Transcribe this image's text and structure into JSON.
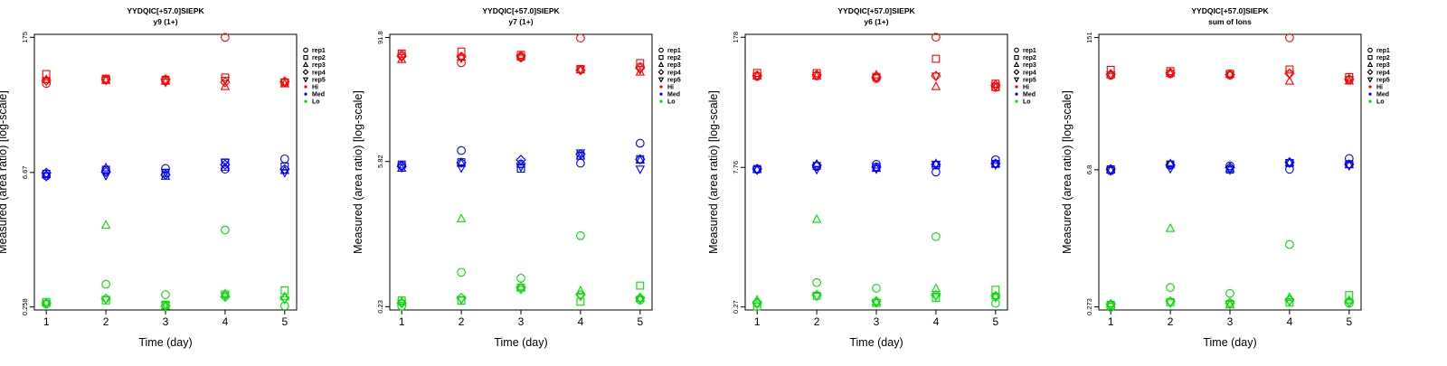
{
  "colors": {
    "Hi": "#ff0000",
    "Med": "#0000ff",
    "Lo": "#00dd00"
  },
  "legend": {
    "placement": "right",
    "entries": [
      {
        "label": "rep1",
        "marker": "circle"
      },
      {
        "label": "rep2",
        "marker": "square"
      },
      {
        "label": "rep3",
        "marker": "triangle-up"
      },
      {
        "label": "rep4",
        "marker": "diamond"
      },
      {
        "label": "rep5",
        "marker": "triangle-down"
      },
      {
        "label": "Hi",
        "marker": "dot",
        "color": "#ff0000"
      },
      {
        "label": "Med",
        "marker": "dot",
        "color": "#0000ff"
      },
      {
        "label": "Lo",
        "marker": "dot",
        "color": "#00dd00"
      }
    ]
  },
  "chart_data": [
    {
      "type": "scatter",
      "title": "YYDQIC[+57.0]SIEPK",
      "subtitle": "y9 (1+)",
      "xlabel": "Time (day)",
      "ylabel": "Measured (area ratio) [log-scale]",
      "yscale": "log",
      "xlim": [
        0.8,
        5.2
      ],
      "ylim": [
        0.24,
        188
      ],
      "xticks": [
        "1",
        "2",
        "3",
        "4",
        "5"
      ],
      "yticks": [
        {
          "value": 0.258,
          "label": "0.258"
        },
        {
          "value": 6.67,
          "label": "6.67"
        },
        {
          "value": 175,
          "label": "175"
        }
      ],
      "series": [
        {
          "group": "Hi",
          "rep": "rep1",
          "values": [
            57.3,
            63.9,
            61.1,
            174.5,
            59.0
          ]
        },
        {
          "group": "Hi",
          "rep": "rep2",
          "values": [
            72.0,
            64.4,
            62.6,
            66.2,
            57.9
          ]
        },
        {
          "group": "Hi",
          "rep": "rep3",
          "values": [
            62.9,
            61.6,
            60.4,
            53.1,
            56.7
          ]
        },
        {
          "group": "Hi",
          "rep": "rep4",
          "values": [
            61.5,
            63.0,
            63.3,
            59.1,
            60.0
          ]
        },
        {
          "group": "Hi",
          "rep": "rep5",
          "values": [
            60.6,
            62.2,
            59.2,
            61.8,
            59.5
          ]
        },
        {
          "group": "Med",
          "rep": "rep1",
          "values": [
            6.14,
            7.0,
            7.35,
            7.22,
            9.26
          ]
        },
        {
          "group": "Med",
          "rep": "rep2",
          "values": [
            6.45,
            7.12,
            6.53,
            8.48,
            7.69
          ]
        },
        {
          "group": "Med",
          "rep": "rep3",
          "values": [
            6.31,
            7.44,
            6.07,
            7.55,
            6.98
          ]
        },
        {
          "group": "Med",
          "rep": "rep4",
          "values": [
            6.61,
            6.74,
            6.31,
            8.05,
            7.22
          ]
        },
        {
          "group": "Med",
          "rep": "rep5",
          "values": [
            6.06,
            6.21,
            6.71,
            8.53,
            6.66
          ]
        },
        {
          "group": "Lo",
          "rep": "rep1",
          "values": [
            0.277,
            0.447,
            0.348,
            1.66,
            0.265
          ]
        },
        {
          "group": "Lo",
          "rep": "rep2",
          "values": [
            0.291,
            0.303,
            0.272,
            0.349,
            0.385
          ]
        },
        {
          "group": "Lo",
          "rep": "rep3",
          "values": [
            0.286,
            1.865,
            0.263,
            0.355,
            0.33
          ]
        },
        {
          "group": "Lo",
          "rep": "rep4",
          "values": [
            0.283,
            0.315,
            0.265,
            0.33,
            0.32
          ]
        },
        {
          "group": "Lo",
          "rep": "rep5",
          "values": [
            0.28,
            0.31,
            0.27,
            0.34,
            0.31
          ]
        }
      ]
    },
    {
      "type": "scatter",
      "title": "YYDQIC[+57.0]SIEPK",
      "subtitle": "y7 (1+)",
      "xlabel": "Time (day)",
      "ylabel": "Measured (area ratio) [log-scale]",
      "yscale": "log",
      "xlim": [
        0.8,
        5.2
      ],
      "ylim": [
        0.214,
        98.6
      ],
      "xticks": [
        "1",
        "2",
        "3",
        "4",
        "5"
      ],
      "yticks": [
        {
          "value": 0.23,
          "label": "0.23"
        },
        {
          "value": 5.82,
          "label": "5.82"
        },
        {
          "value": 91.8,
          "label": "91.8"
        }
      ],
      "series": [
        {
          "group": "Hi",
          "rep": "rep1",
          "values": [
            61.9,
            52.4,
            59.1,
            90.8,
            47.8
          ]
        },
        {
          "group": "Hi",
          "rep": "rep2",
          "values": [
            64.2,
            67.1,
            62.4,
            45.6,
            52.0
          ]
        },
        {
          "group": "Hi",
          "rep": "rep3",
          "values": [
            56.2,
            59.4,
            59.8,
            44.7,
            42.5
          ]
        },
        {
          "group": "Hi",
          "rep": "rep4",
          "values": [
            60.4,
            60.0,
            60.8,
            44.4,
            46.5
          ]
        },
        {
          "group": "Hi",
          "rep": "rep5",
          "values": [
            59.0,
            58.0,
            58.4,
            45.0,
            45.0
          ]
        },
        {
          "group": "Med",
          "rep": "rep1",
          "values": [
            5.32,
            7.43,
            5.51,
            5.61,
            8.74
          ]
        },
        {
          "group": "Med",
          "rep": "rep2",
          "values": [
            5.44,
            5.73,
            4.97,
            6.63,
            6.13
          ]
        },
        {
          "group": "Med",
          "rep": "rep3",
          "values": [
            5.01,
            5.58,
            5.47,
            6.56,
            5.99
          ]
        },
        {
          "group": "Med",
          "rep": "rep4",
          "values": [
            5.21,
            5.67,
            6.04,
            6.86,
            6.11
          ]
        },
        {
          "group": "Med",
          "rep": "rep5",
          "values": [
            5.09,
            5.06,
            5.18,
            7.06,
            4.92
          ]
        },
        {
          "group": "Lo",
          "rep": "rep1",
          "values": [
            0.233,
            0.495,
            0.434,
            1.118,
            0.267
          ]
        },
        {
          "group": "Lo",
          "rep": "rep2",
          "values": [
            0.264,
            0.263,
            0.352,
            0.257,
            0.368
          ]
        },
        {
          "group": "Lo",
          "rep": "rep3",
          "values": [
            0.258,
            1.628,
            0.357,
            0.327,
            0.276
          ]
        },
        {
          "group": "Lo",
          "rep": "rep4",
          "values": [
            0.25,
            0.28,
            0.35,
            0.3,
            0.28
          ]
        },
        {
          "group": "Lo",
          "rep": "rep5",
          "values": [
            0.25,
            0.27,
            0.34,
            0.29,
            0.27
          ]
        }
      ]
    },
    {
      "type": "scatter",
      "title": "YYDQIC[+57.0]SIEPK",
      "subtitle": "y6 (1+)",
      "xlabel": "Time (day)",
      "ylabel": "Measured (area ratio) [log-scale]",
      "yscale": "log",
      "xlim": [
        0.8,
        5.2
      ],
      "ylim": [
        0.251,
        191
      ],
      "xticks": [
        "1",
        "2",
        "3",
        "4",
        "5"
      ],
      "yticks": [
        {
          "value": 0.27,
          "label": "0.27"
        },
        {
          "value": 7.76,
          "label": "7.76"
        },
        {
          "value": 178,
          "label": "178"
        }
      ],
      "series": [
        {
          "group": "Hi",
          "rep": "rep1",
          "values": [
            69.3,
            70.4,
            66.0,
            178.3,
            53.3
          ]
        },
        {
          "group": "Hi",
          "rep": "rep2",
          "values": [
            75.4,
            75.1,
            68.5,
            106.0,
            58.2
          ]
        },
        {
          "group": "Hi",
          "rep": "rep3",
          "values": [
            70.0,
            70.0,
            71.8,
            54.3,
            53.3
          ]
        },
        {
          "group": "Hi",
          "rep": "rep4",
          "values": [
            71.0,
            72.0,
            68.0,
            70.0,
            56.0
          ]
        },
        {
          "group": "Hi",
          "rep": "rep5",
          "values": [
            70.0,
            71.0,
            67.0,
            70.0,
            55.0
          ]
        },
        {
          "group": "Med",
          "rep": "rep1",
          "values": [
            7.36,
            7.93,
            8.36,
            6.94,
            9.34
          ]
        },
        {
          "group": "Med",
          "rep": "rep2",
          "values": [
            7.47,
            8.04,
            7.84,
            8.18,
            8.45
          ]
        },
        {
          "group": "Med",
          "rep": "rep3",
          "values": [
            7.39,
            8.38,
            7.58,
            8.48,
            8.45
          ]
        },
        {
          "group": "Med",
          "rep": "rep4",
          "values": [
            7.5,
            8.2,
            7.8,
            8.3,
            8.5
          ]
        },
        {
          "group": "Med",
          "rep": "rep5",
          "values": [
            7.3,
            7.4,
            7.5,
            8.4,
            8.3
          ]
        },
        {
          "group": "Lo",
          "rep": "rep1",
          "values": [
            0.294,
            0.485,
            0.423,
            1.467,
            0.295
          ]
        },
        {
          "group": "Lo",
          "rep": "rep2",
          "values": [
            0.274,
            0.353,
            0.297,
            0.335,
            0.408
          ]
        },
        {
          "group": "Lo",
          "rep": "rep3",
          "values": [
            0.318,
            2.224,
            0.304,
            0.42,
            0.352
          ]
        },
        {
          "group": "Lo",
          "rep": "rep4",
          "values": [
            0.3,
            0.36,
            0.31,
            0.36,
            0.35
          ]
        },
        {
          "group": "Lo",
          "rep": "rep5",
          "values": [
            0.29,
            0.35,
            0.3,
            0.35,
            0.34
          ]
        }
      ]
    },
    {
      "type": "scatter",
      "title": "YYDQIC[+57.0]SIEPK",
      "subtitle": "sum of Ions",
      "xlabel": "Time (day)",
      "ylabel": "Measured (area ratio) [log-scale]",
      "yscale": "log",
      "xlim": [
        0.8,
        5.2
      ],
      "ylim": [
        0.254,
        163
      ],
      "xticks": [
        "1",
        "2",
        "3",
        "4",
        "5"
      ],
      "yticks": [
        {
          "value": 0.273,
          "label": "0.273"
        },
        {
          "value": 6.8,
          "label": "6.8"
        },
        {
          "value": 151,
          "label": "151"
        }
      ],
      "series": [
        {
          "group": "Hi",
          "rep": "rep1",
          "values": [
            62.4,
            64.5,
            62.6,
            150.4,
            56.0
          ]
        },
        {
          "group": "Hi",
          "rep": "rep2",
          "values": [
            70.8,
            68.8,
            64.7,
            71.5,
            59.8
          ]
        },
        {
          "group": "Hi",
          "rep": "rep3",
          "values": [
            63.1,
            65.4,
            64.1,
            54.3,
            54.4
          ]
        },
        {
          "group": "Hi",
          "rep": "rep4",
          "values": [
            64.0,
            66.0,
            63.5,
            65.0,
            57.0
          ]
        },
        {
          "group": "Hi",
          "rep": "rep5",
          "values": [
            63.0,
            65.0,
            63.0,
            64.0,
            56.5
          ]
        },
        {
          "group": "Med",
          "rep": "rep1",
          "values": [
            6.65,
            7.66,
            7.46,
            6.88,
            8.86
          ]
        },
        {
          "group": "Med",
          "rep": "rep2",
          "values": [
            6.87,
            7.7,
            6.84,
            7.97,
            7.76
          ]
        },
        {
          "group": "Med",
          "rep": "rep3",
          "values": [
            6.75,
            7.81,
            6.97,
            8.05,
            7.65
          ]
        },
        {
          "group": "Med",
          "rep": "rep4",
          "values": [
            6.9,
            7.6,
            7.2,
            8.1,
            7.7
          ]
        },
        {
          "group": "Med",
          "rep": "rep5",
          "values": [
            6.7,
            7.0,
            6.8,
            8.0,
            7.5
          ]
        },
        {
          "group": "Lo",
          "rep": "rep1",
          "values": [
            0.271,
            0.43,
            0.375,
            1.18,
            0.297
          ]
        },
        {
          "group": "Lo",
          "rep": "rep2",
          "values": [
            0.286,
            0.305,
            0.292,
            0.302,
            0.36
          ]
        },
        {
          "group": "Lo",
          "rep": "rep3",
          "values": [
            0.293,
            1.718,
            0.288,
            0.341,
            0.32
          ]
        },
        {
          "group": "Lo",
          "rep": "rep4",
          "values": [
            0.29,
            0.31,
            0.3,
            0.32,
            0.31
          ]
        },
        {
          "group": "Lo",
          "rep": "rep5",
          "values": [
            0.28,
            0.3,
            0.29,
            0.31,
            0.3
          ]
        }
      ]
    }
  ]
}
